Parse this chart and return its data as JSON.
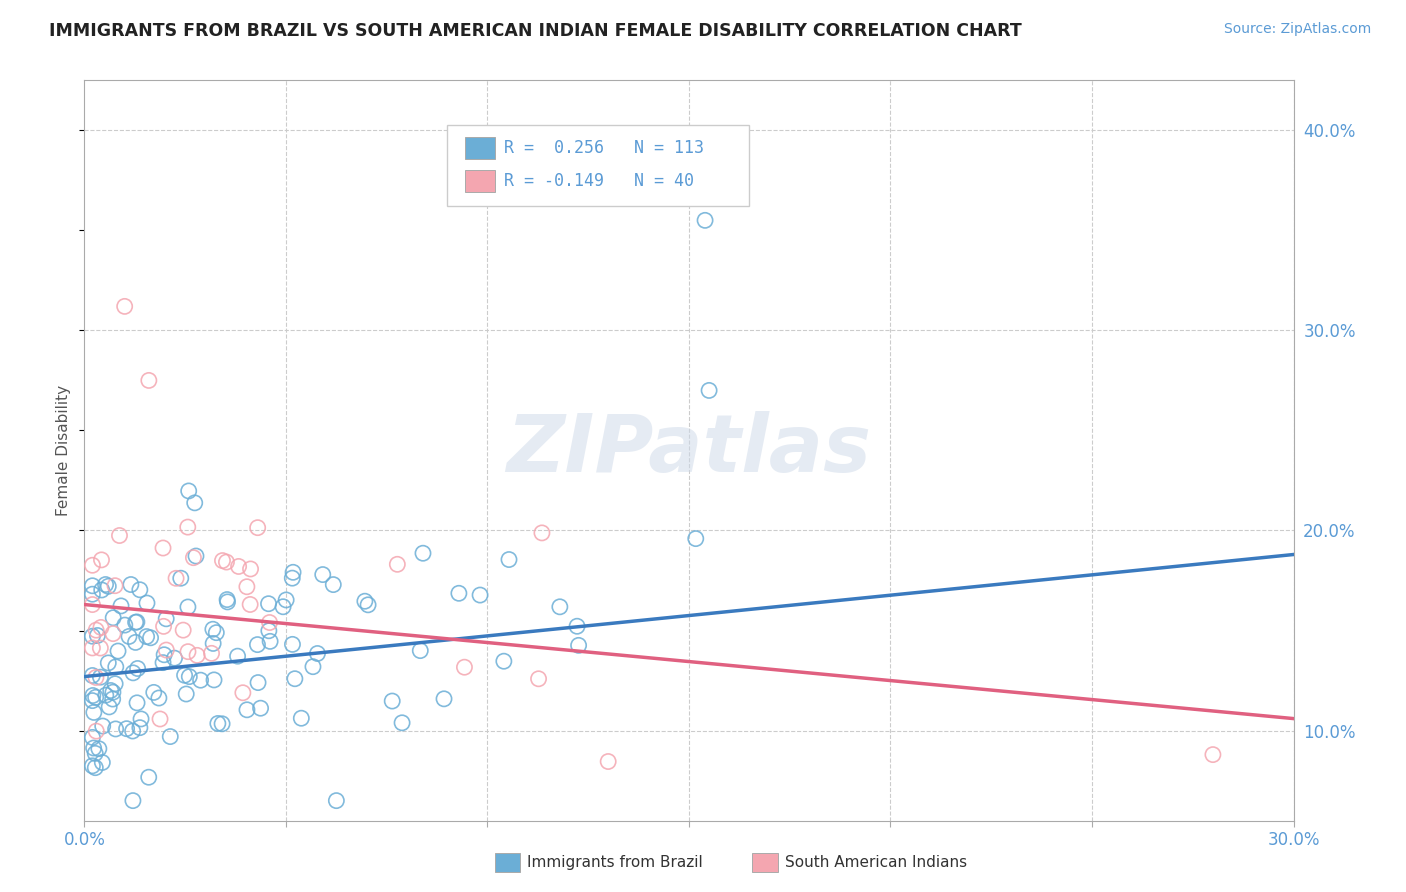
{
  "title": "IMMIGRANTS FROM BRAZIL VS SOUTH AMERICAN INDIAN FEMALE DISABILITY CORRELATION CHART",
  "source": "Source: ZipAtlas.com",
  "ylabel": "Female Disability",
  "xlim": [
    0.0,
    0.3
  ],
  "ylim": [
    0.055,
    0.425
  ],
  "xtick_vals": [
    0.0,
    0.05,
    0.1,
    0.15,
    0.2,
    0.25,
    0.3
  ],
  "xticklabels": [
    "0.0%",
    "",
    "",
    "",
    "",
    "",
    "30.0%"
  ],
  "ytick_vals": [
    0.1,
    0.2,
    0.3,
    0.4
  ],
  "yticklabels": [
    "10.0%",
    "20.0%",
    "30.0%",
    "40.0%"
  ],
  "brazil_color": "#6baed6",
  "indian_color": "#f4a6b0",
  "brazil_line_color": "#3a7abf",
  "indian_line_color": "#e06080",
  "brazil_R": 0.256,
  "brazil_N": 113,
  "indian_R": -0.149,
  "indian_N": 40,
  "brazil_line_start_y": 0.127,
  "brazil_line_end_y": 0.188,
  "indian_line_start_y": 0.163,
  "indian_line_end_y": 0.106,
  "watermark": "ZIPatlas",
  "background_color": "#ffffff",
  "grid_color": "#cccccc",
  "tick_color": "#5b9bd5",
  "title_color": "#222222",
  "ylabel_color": "#555555"
}
